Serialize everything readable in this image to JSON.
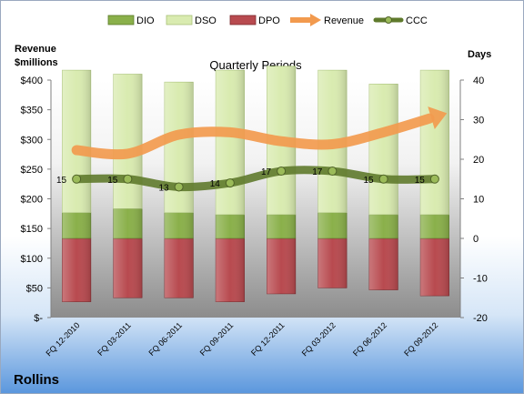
{
  "company": "Rollins",
  "chart_data": {
    "type": "bar",
    "title": "Quarterly Periods",
    "ylabel_left": [
      "Revenue",
      "$millions"
    ],
    "ylabel_right": "Days",
    "categories": [
      "FQ 12-2010",
      "FQ 03-2011",
      "FQ 06-2011",
      "FQ 09-2011",
      "FQ 12-2011",
      "FQ 03-2012",
      "FQ 06-2012",
      "FQ 09-2012"
    ],
    "left_axis": {
      "min": 0,
      "max": 400,
      "ticks": [
        "$-",
        "$50",
        "$100",
        "$150",
        "$200",
        "$250",
        "$300",
        "$350",
        "$400"
      ]
    },
    "right_axis": {
      "min": -20,
      "max": 40,
      "ticks": [
        "-20",
        "-10",
        "0",
        "10",
        "20",
        "30",
        "40"
      ]
    },
    "stacked_days": [
      {
        "name": "DIO",
        "color": "#8ab04a",
        "values": [
          6.5,
          7.5,
          6.5,
          6,
          6,
          6.5,
          6,
          6
        ]
      },
      {
        "name": "DSO",
        "color": "#d9ebb0",
        "values": [
          36,
          34,
          33,
          36.5,
          37.5,
          36,
          33,
          36.5
        ]
      },
      {
        "name": "DPO",
        "color": "#b84a4f",
        "values": [
          -16,
          -15,
          -15,
          -16,
          -14,
          -12.5,
          -13,
          -14.5
        ]
      }
    ],
    "revenue": {
      "name": "Revenue",
      "color": "#f29a4e",
      "values": [
        282,
        276,
        308,
        312,
        297,
        292,
        312,
        338
      ]
    },
    "ccc": {
      "name": "CCC",
      "color": "#5f7a2c",
      "values": [
        15,
        15,
        13,
        14,
        17,
        17,
        15,
        15
      ]
    },
    "legend": [
      "DIO",
      "DSO",
      "DPO",
      "Revenue",
      "CCC"
    ],
    "legend_position": "top",
    "grid": false
  }
}
